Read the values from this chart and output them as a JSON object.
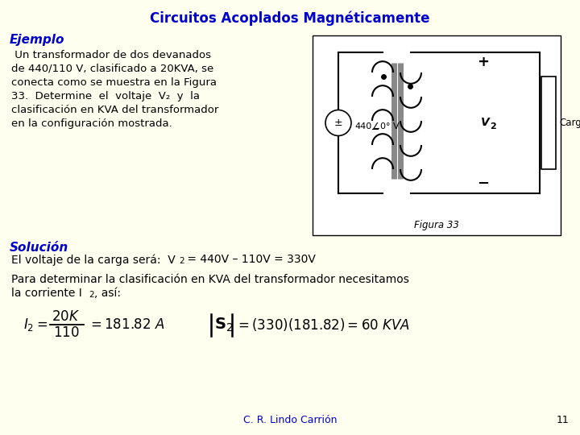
{
  "background_color": "#FFFFF0",
  "title": "Circuitos Acoplados Magnéticamente",
  "title_color": "#0000CC",
  "title_fontsize": 12,
  "ejemplo_label": "Ejemplo",
  "ejemplo_color": "#0000CC",
  "solucion_label": "Solución",
  "solucion_color": "#0000CC",
  "footer": "C. R. Lindo Carrión",
  "footer_color": "#0000CC",
  "page_num": "11"
}
